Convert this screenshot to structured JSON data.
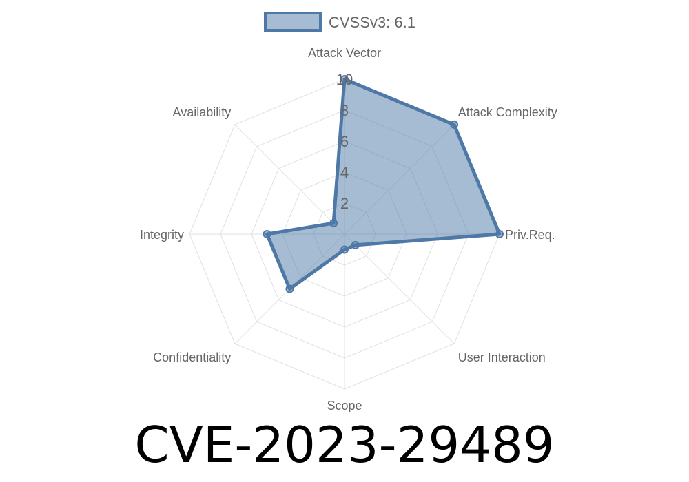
{
  "title": "CVE-2023-29489",
  "chart_data": {
    "type": "radar",
    "axes": [
      "Attack Vector",
      "Attack Complexity",
      "Priv.Req.",
      "User Interaction",
      "Scope",
      "Confidentiality",
      "Integrity",
      "Availability"
    ],
    "series": [
      {
        "name": "CVSSv3: 6.1",
        "values": [
          10,
          10,
          10,
          1,
          1,
          5,
          5,
          1
        ]
      }
    ],
    "rlim": [
      0,
      10
    ],
    "ticks": [
      "2",
      "4",
      "6",
      "8",
      "10"
    ],
    "grid": true,
    "legend": "top",
    "colors": {
      "stroke": "#4e79a7",
      "fill": "rgba(78,121,167,0.5)",
      "grid": "#e0e0e0"
    }
  }
}
